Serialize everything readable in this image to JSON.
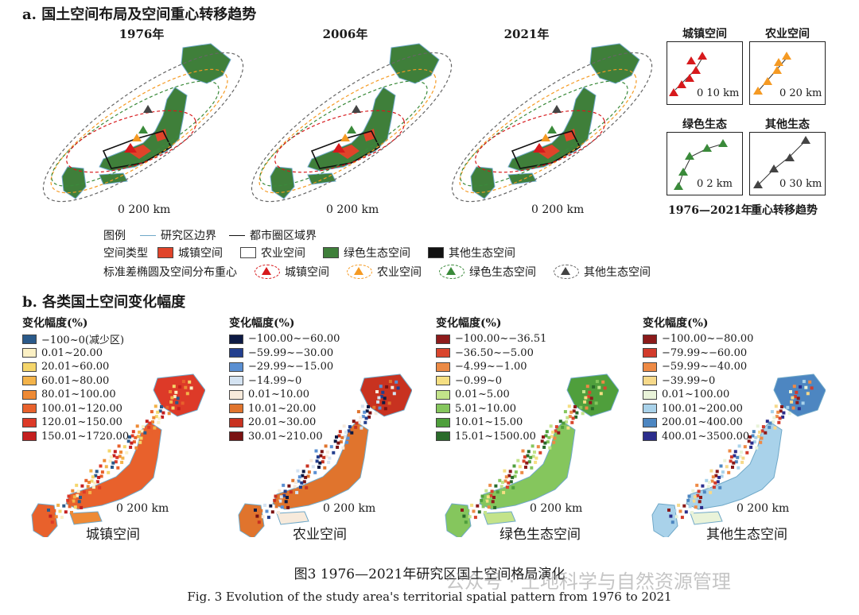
{
  "section_a": {
    "title": "a. 国土空间布局及空间重心转移趋势",
    "years": [
      "1976年",
      "2006年",
      "2021年"
    ],
    "scale_text": "0  200 km",
    "legend": {
      "row1_label": "图例",
      "study_boundary": "研究区边界",
      "metro_boundary": "都市圈区域界",
      "row2_label": "空间类型",
      "types": [
        "城镇空间",
        "农业空间",
        "绿色生态空间",
        "其他生态空间"
      ],
      "row3_label": "标准差椭圆及空间分布重心",
      "ellipses": [
        "城镇空间",
        "农业空间",
        "绿色生态空间",
        "其他生态空间"
      ]
    },
    "trend_panels": [
      {
        "title": "城镇空间",
        "scale": "0 10 km"
      },
      {
        "title": "农业空间",
        "scale": "0  20 km"
      },
      {
        "title": "绿色生态",
        "scale": "0  2 km"
      },
      {
        "title": "其他生态",
        "scale": "0  30 km"
      }
    ],
    "trend_caption_left": "1976—2021年",
    "trend_caption_right": "重心转移趋势"
  },
  "section_b": {
    "title": "b. 各类国土空间变化幅度",
    "legend_header": "变化幅度(%)",
    "scale_text": "0  200 km",
    "maps": [
      {
        "label": "城镇空间",
        "classes": [
          "−100~0(减少区)",
          "0.01~20.00",
          "20.01~60.00",
          "60.01~80.00",
          "80.01~100.00",
          "100.01~120.00",
          "120.01~150.00",
          "150.01~1720.00"
        ],
        "colors": [
          "#2b5a8a",
          "#fbf0c4",
          "#f5d66b",
          "#f3b34a",
          "#ee8a35",
          "#e8612c",
          "#dd3a28",
          "#c41f1f"
        ]
      },
      {
        "label": "农业空间",
        "classes": [
          "−100.00~−60.00",
          "−59.99~−30.00",
          "−29.99~−15.00",
          "−14.99~0",
          "0.01~10.00",
          "10.01~20.00",
          "20.01~30.00",
          "30.01~210.00"
        ],
        "colors": [
          "#0d1a44",
          "#233f8f",
          "#5a8fd2",
          "#d4e3f2",
          "#f7eadb",
          "#e0742d",
          "#c83220",
          "#7a1212"
        ]
      },
      {
        "label": "绿色生态空间",
        "classes": [
          "−100.00~−36.51",
          "−36.50~−5.00",
          "−4.99~−1.00",
          "−0.99~0",
          "0.01~5.00",
          "5.01~10.00",
          "10.01~15.00",
          "15.01~1500.00"
        ],
        "colors": [
          "#8e1b1b",
          "#d9452d",
          "#ec8a45",
          "#f5df82",
          "#c3e38a",
          "#85c65d",
          "#4f9f3c",
          "#2a6b2a"
        ]
      },
      {
        "label": "其他生态空间",
        "classes": [
          "−100.00~−80.00",
          "−79.99~−60.00",
          "−59.99~−40.00",
          "−39.99~0",
          "0.01~100.00",
          "100.01~200.00",
          "200.01~400.00",
          "400.01~3500.00"
        ],
        "colors": [
          "#8b1a1a",
          "#d23b2c",
          "#ee8a45",
          "#f6d98a",
          "#e9f3d9",
          "#a9d2ea",
          "#4d86c1",
          "#2b2d8c"
        ]
      }
    ]
  },
  "caption_cn": "图3  1976—2021年研究区国土空间格局演化",
  "caption_en": "Fig. 3   Evolution of the study area's territorial spatial pattern from 1976 to 2021",
  "watermark": "公众号 · 土地科学与自然资源管理",
  "colors": {
    "urban": "#e0442a",
    "agri": "#ffffff",
    "green": "#3f7f3a",
    "other": "#111111",
    "urban_tri": "#d7191c",
    "agri_tri": "#f59a23",
    "green_tri": "#3a8a3a",
    "other_tri": "#444444"
  }
}
